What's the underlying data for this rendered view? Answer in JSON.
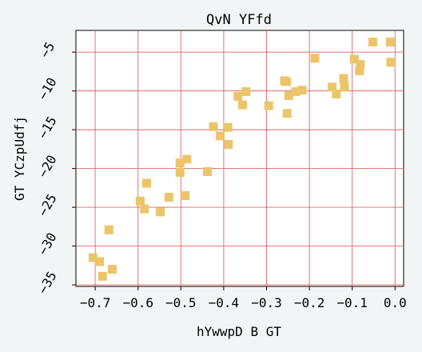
{
  "chart_data": {
    "type": "scatter",
    "title": "QvN YFfd",
    "xlabel": "hYwwpD B GT",
    "ylabel": "GT YCzpUdfj",
    "xlim": [
      -0.745,
      0.02
    ],
    "ylim": [
      -35.2,
      -2.2
    ],
    "xticks": [
      -0.7,
      -0.6,
      -0.5,
      -0.4,
      -0.3,
      -0.2,
      -0.1,
      0.0
    ],
    "xtick_labels": [
      "−0.7",
      "−0.6",
      "−0.5",
      "−0.4",
      "−0.3",
      "−0.2",
      "−0.1",
      "0.0"
    ],
    "yticks": [
      -35,
      -30,
      -25,
      -20,
      -15,
      -10,
      -5
    ],
    "ytick_labels": [
      "−35",
      "−30",
      "−25",
      "−20",
      "−15",
      "−10",
      "−5"
    ],
    "grid": true,
    "marker_color": "#ecc46a",
    "grid_color": "#e06666",
    "points": [
      [
        -0.705,
        -31.5
      ],
      [
        -0.69,
        -32.0
      ],
      [
        -0.683,
        -33.9
      ],
      [
        -0.668,
        -27.9
      ],
      [
        -0.66,
        -33.0
      ],
      [
        -0.595,
        -24.2
      ],
      [
        -0.585,
        -25.2
      ],
      [
        -0.58,
        -21.9
      ],
      [
        -0.548,
        -25.6
      ],
      [
        -0.528,
        -23.7
      ],
      [
        -0.502,
        -20.5
      ],
      [
        -0.502,
        -19.3
      ],
      [
        -0.49,
        -23.5
      ],
      [
        -0.486,
        -18.8
      ],
      [
        -0.438,
        -20.4
      ],
      [
        -0.424,
        -14.6
      ],
      [
        -0.408,
        -15.8
      ],
      [
        -0.39,
        -14.7
      ],
      [
        -0.389,
        -16.9
      ],
      [
        -0.367,
        -10.7
      ],
      [
        -0.356,
        -11.8
      ],
      [
        -0.348,
        -10.1
      ],
      [
        -0.295,
        -11.9
      ],
      [
        -0.258,
        -8.7
      ],
      [
        -0.253,
        -8.8
      ],
      [
        -0.252,
        -12.9
      ],
      [
        -0.248,
        -10.6
      ],
      [
        -0.232,
        -10.1
      ],
      [
        -0.217,
        -9.9
      ],
      [
        -0.187,
        -5.8
      ],
      [
        -0.147,
        -9.5
      ],
      [
        -0.137,
        -10.4
      ],
      [
        -0.12,
        -8.4
      ],
      [
        -0.118,
        -9.5
      ],
      [
        -0.095,
        -5.9
      ],
      [
        -0.083,
        -7.4
      ],
      [
        -0.081,
        -6.6
      ],
      [
        -0.052,
        -3.7
      ],
      [
        -0.011,
        -3.7
      ],
      [
        -0.01,
        -6.3
      ]
    ]
  }
}
